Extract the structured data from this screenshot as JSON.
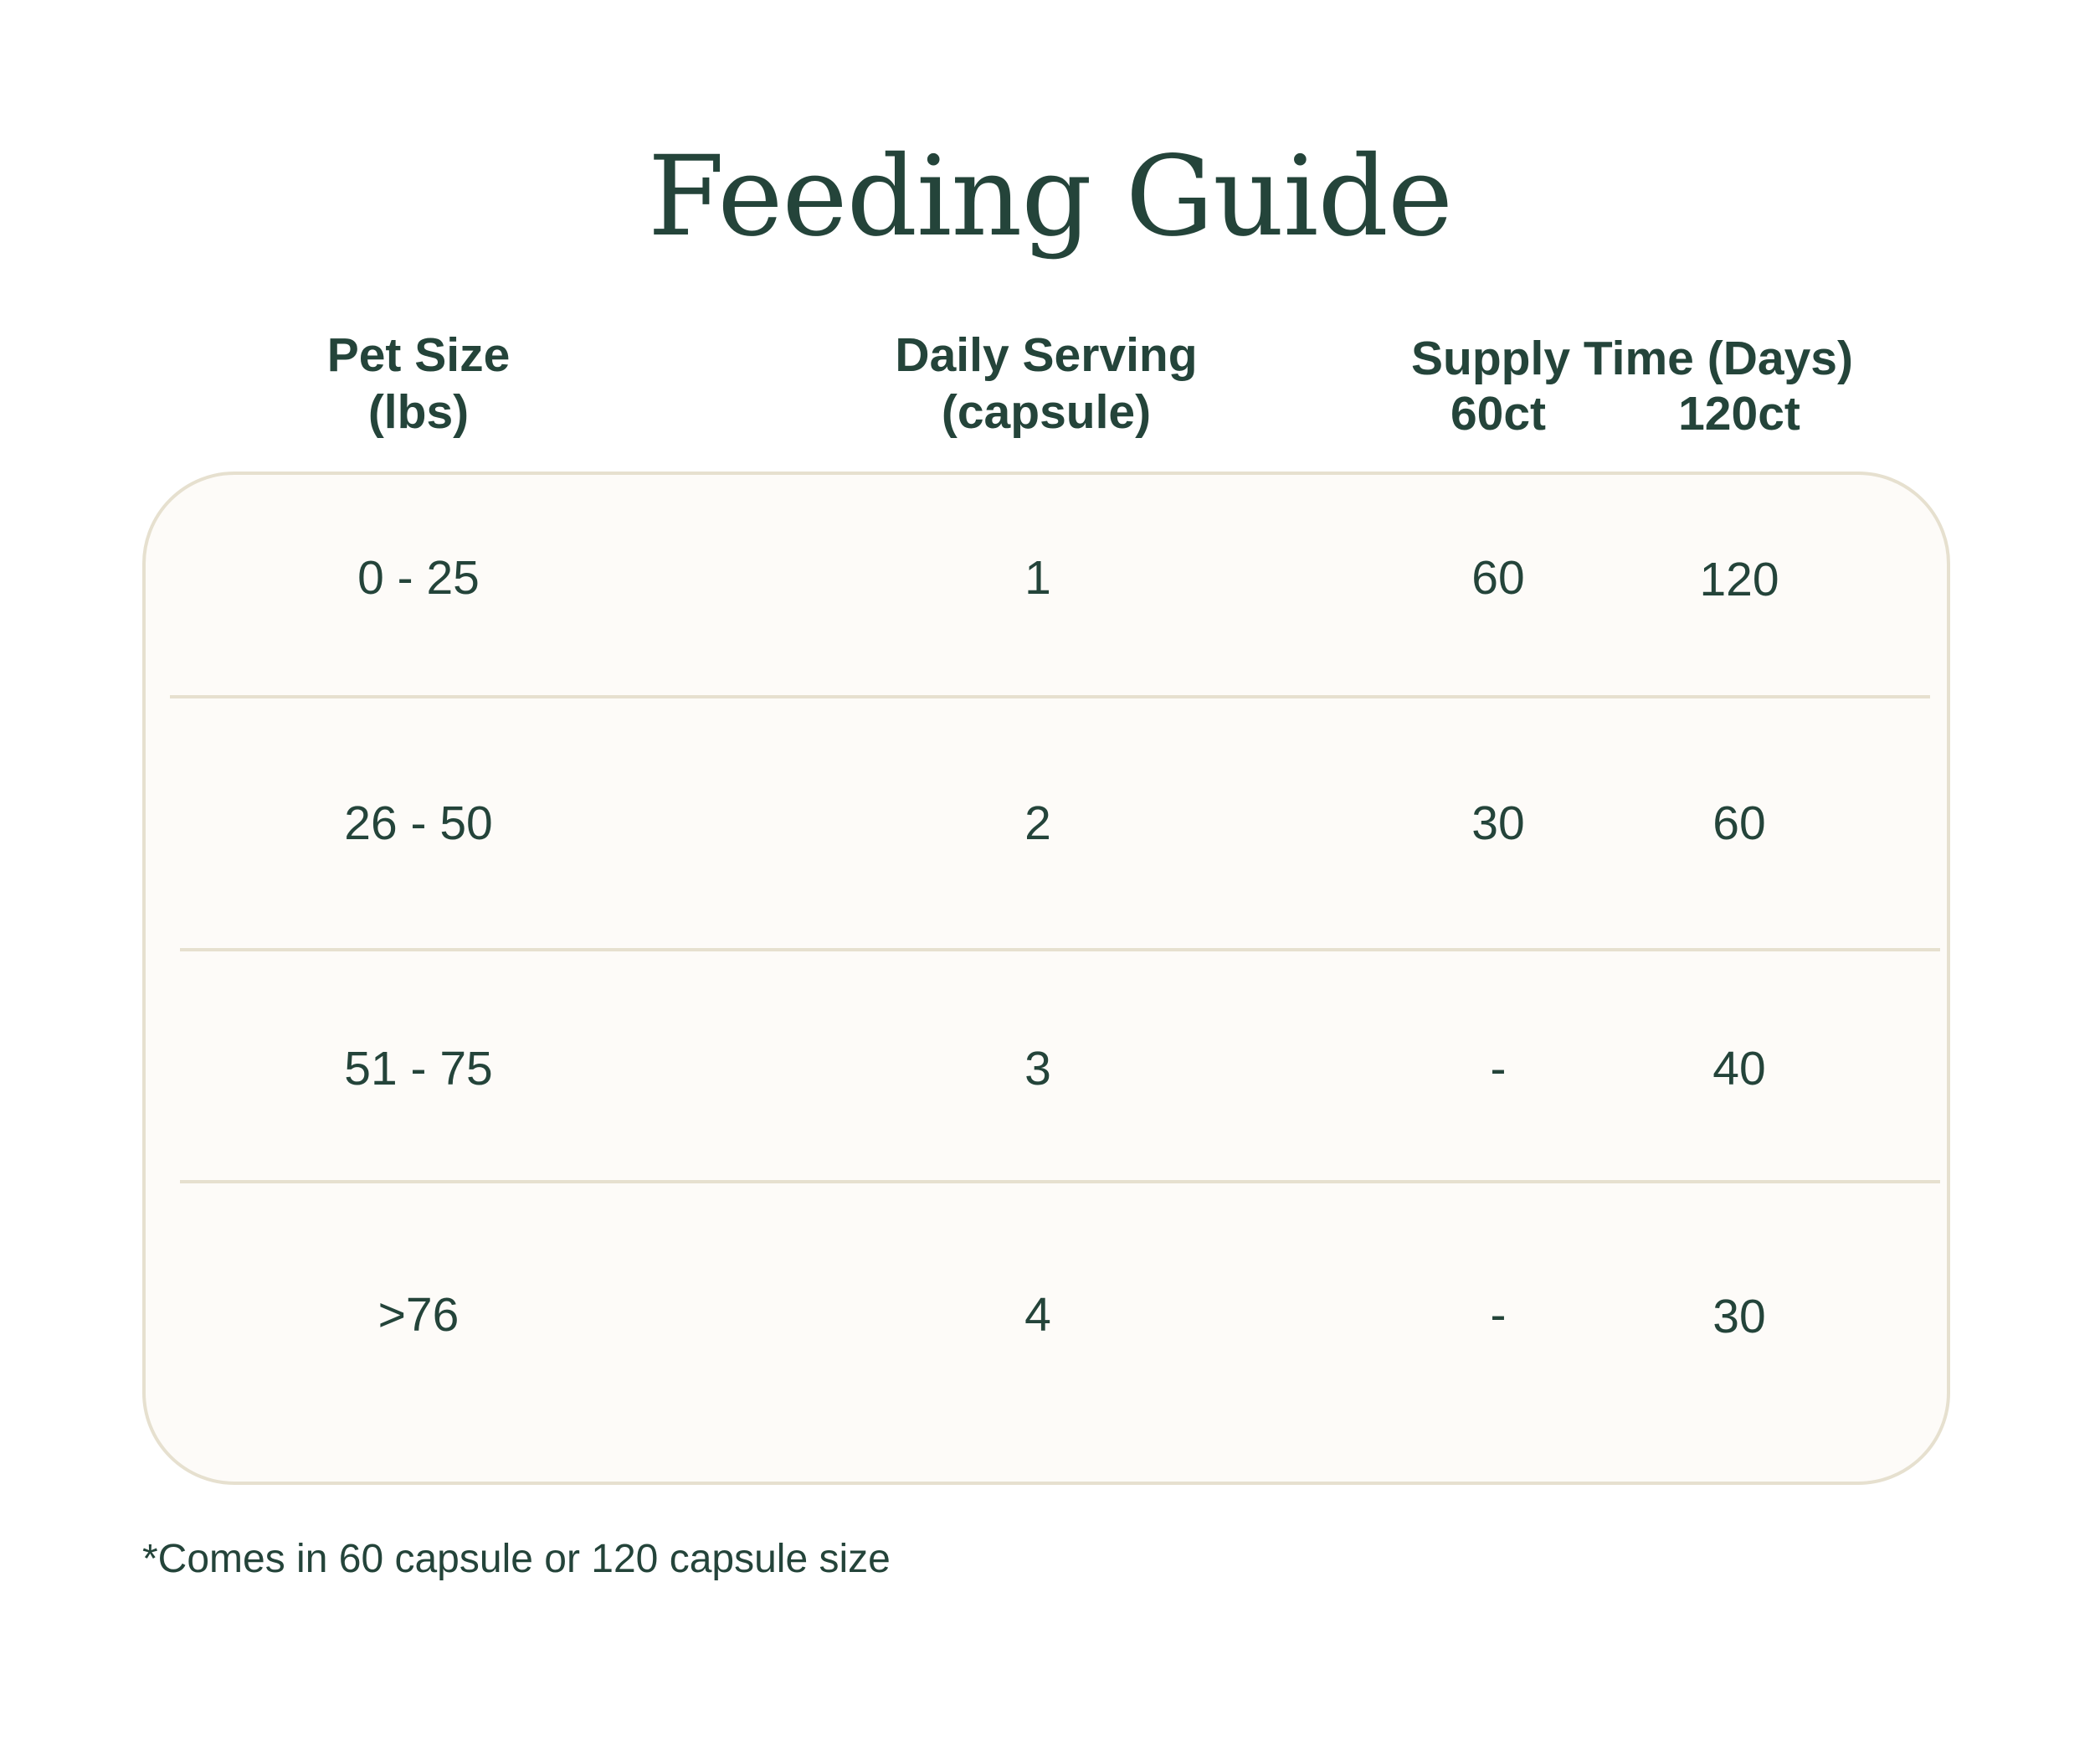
{
  "title": "Feeding Guide",
  "headers": {
    "pet_size": "Pet Size",
    "pet_size_unit": "(lbs)",
    "daily_serving": "Daily Serving",
    "daily_serving_unit": "(capsule)",
    "supply_time": "Supply Time (Days)",
    "supply_60": "60ct",
    "supply_120": "120ct"
  },
  "rows": [
    {
      "pet_size": "0 - 25",
      "daily": "1",
      "ct60": "60",
      "ct120": "120"
    },
    {
      "pet_size": "26 - 50",
      "daily": "2",
      "ct60": "30",
      "ct120": "60"
    },
    {
      "pet_size": "51 - 75",
      "daily": "3",
      "ct60": "-",
      "ct120": "40"
    },
    {
      "pet_size": ">76",
      "daily": "4",
      "ct60": "-",
      "ct120": "30"
    }
  ],
  "footnote": "*Comes in 60 capsule or 120 capsule size",
  "colors": {
    "text": "#24443a",
    "card_background": "#fdfbf8",
    "border": "#e6e0cf"
  }
}
